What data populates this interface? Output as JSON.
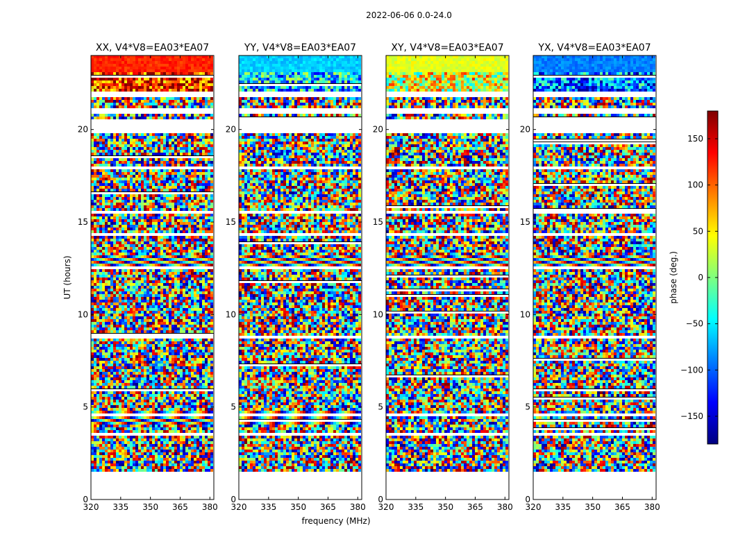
{
  "chart_data": {
    "type": "heatmap",
    "suptitle": "2022-06-06 0.0-24.0",
    "xlabel": "frequency (MHz)",
    "ylabel": "UT (hours)",
    "xlim": [
      320,
      382
    ],
    "ylim": [
      0,
      24
    ],
    "xticks": [
      "320",
      "335",
      "350",
      "365",
      "380"
    ],
    "xtick_values": [
      320,
      335,
      350,
      365,
      380
    ],
    "yticks": [
      "0",
      "5",
      "10",
      "15",
      "20"
    ],
    "ytick_values": [
      0,
      5,
      10,
      15,
      20
    ],
    "panels": [
      {
        "title": "XX, V4*V8=EA03*EA07",
        "pol": "XX"
      },
      {
        "title": "YY, V4*V8=EA03*EA07",
        "pol": "YY"
      },
      {
        "title": "XY, V4*V8=EA03*EA07",
        "pol": "XY"
      },
      {
        "title": "YX, V4*V8=EA03*EA07",
        "pol": "YX"
      }
    ],
    "data_coverage_hours": [
      1.6,
      24.0
    ],
    "flagged_gaps_hours": [
      [
        0.0,
        1.6
      ],
      [
        3.5,
        3.65
      ],
      [
        4.6,
        4.75
      ],
      [
        8.75,
        8.9
      ],
      [
        12.6,
        12.75
      ],
      [
        14.3,
        14.4
      ],
      [
        15.6,
        15.75
      ],
      [
        18.0,
        18.1
      ],
      [
        19.9,
        20.6
      ],
      [
        20.9,
        21.3
      ],
      [
        21.8,
        22.1
      ]
    ],
    "colorbar": {
      "label": "phase (deg.)",
      "vmin": -180,
      "vmax": 180,
      "ticks": [
        "150",
        "100",
        "50",
        "0",
        "−50",
        "−100",
        "−150"
      ],
      "tick_values": [
        150,
        100,
        50,
        0,
        -50,
        -100,
        -150
      ],
      "colormap": "jet"
    }
  }
}
